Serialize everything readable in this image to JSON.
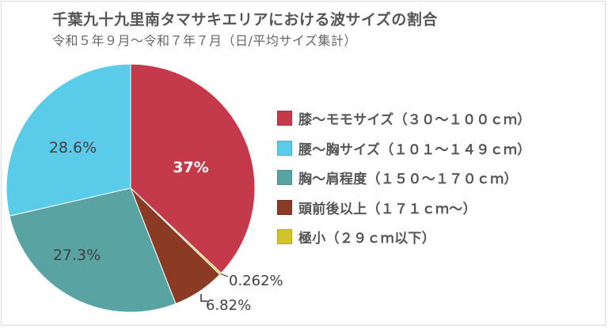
{
  "chart_data": {
    "type": "pie",
    "title": "千葉九十九里南タマサキエリアにおける波サイズの割合",
    "subtitle": "令和５年９月～令和７年７月（日/平均サイズ集計）",
    "slices": [
      {
        "label": "膝～モモサイズ（３０～１００ｃｍ）",
        "value": 37,
        "display": "37%",
        "color": "#c53a4b"
      },
      {
        "label": "極小（２９ｃｍ以下）",
        "value": 0.262,
        "display": "0.262%",
        "color": "#d4c22c"
      },
      {
        "label": "頭前後以上（１７１ｃｍ～）",
        "value": 6.82,
        "display": "6.82%",
        "color": "#8b3a24"
      },
      {
        "label": "胸～肩程度（１５０～１７０ｃｍ）",
        "value": 27.3,
        "display": "27.3%",
        "color": "#59a3a3"
      },
      {
        "label": "腰～胸サイズ（１０１～１４９ｃｍ）",
        "value": 28.6,
        "display": "28.6%",
        "color": "#5bcbea"
      }
    ],
    "legend": [
      {
        "label": "膝～モモサイズ（３０～１００ｃｍ）",
        "color": "#c53a4b"
      },
      {
        "label": "腰～胸サイズ（１０１～１４９ｃｍ）",
        "color": "#5bcbea"
      },
      {
        "label": "胸～肩程度（１５０～１７０ｃｍ）",
        "color": "#59a3a3"
      },
      {
        "label": "頭前後以上（１７１ｃｍ～）",
        "color": "#8b3a24"
      },
      {
        "label": "極小（２９ｃｍ以下）",
        "color": "#d4c22c"
      }
    ],
    "legend_position": "right"
  }
}
